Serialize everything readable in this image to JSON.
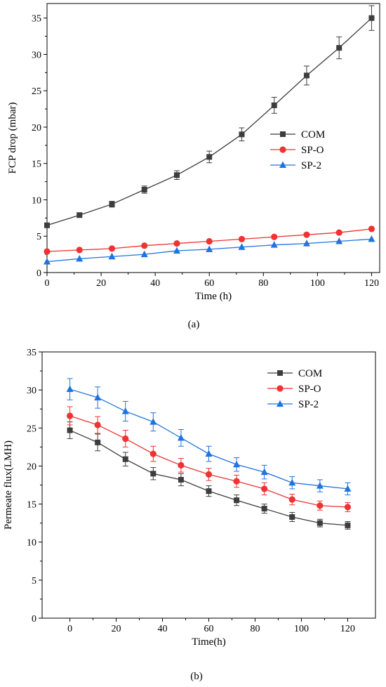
{
  "chart_data": [
    {
      "type": "line",
      "panel_label": "(a)",
      "xlabel": "Time (h)",
      "ylabel": "FCP drop (mbar)",
      "xlim": [
        0,
        123
      ],
      "ylim": [
        0,
        37
      ],
      "xticks": [
        0,
        20,
        40,
        60,
        80,
        100,
        120
      ],
      "yticks": [
        0,
        5,
        10,
        15,
        20,
        25,
        30,
        35
      ],
      "grid": false,
      "legend_position": "center-right",
      "x": [
        0,
        12,
        24,
        36,
        48,
        60,
        72,
        84,
        96,
        108,
        120
      ],
      "series": [
        {
          "name": "COM",
          "marker": "square",
          "color": "#3d3d3d",
          "values": [
            6.5,
            7.9,
            9.4,
            11.4,
            13.4,
            15.9,
            19.0,
            23.0,
            27.1,
            30.9,
            35.0
          ],
          "errors": [
            0.3,
            0.3,
            0.4,
            0.5,
            0.6,
            0.8,
            0.9,
            1.1,
            1.3,
            1.5,
            1.7
          ]
        },
        {
          "name": "SP-O",
          "marker": "circle",
          "color": "#f03232",
          "values": [
            2.9,
            3.1,
            3.3,
            3.7,
            4.0,
            4.3,
            4.6,
            4.9,
            5.2,
            5.5,
            6.0
          ],
          "errors": [
            0,
            0,
            0,
            0,
            0,
            0,
            0,
            0,
            0,
            0,
            0
          ]
        },
        {
          "name": "SP-2",
          "marker": "triangle",
          "color": "#1f74e0",
          "values": [
            1.5,
            1.9,
            2.2,
            2.5,
            3.0,
            3.2,
            3.5,
            3.8,
            4.0,
            4.3,
            4.6
          ],
          "errors": [
            0,
            0,
            0,
            0,
            0,
            0,
            0,
            0,
            0,
            0,
            0
          ]
        }
      ]
    },
    {
      "type": "line",
      "panel_label": "(b)",
      "xlabel": "Time(h)",
      "ylabel": "Permeate flux(LMH)",
      "xlim": [
        -12,
        132
      ],
      "ylim": [
        0,
        35
      ],
      "xticks": [
        0,
        20,
        40,
        60,
        80,
        100,
        120
      ],
      "yticks": [
        0,
        5,
        10,
        15,
        20,
        25,
        30,
        35
      ],
      "grid": false,
      "legend_position": "top-right",
      "x": [
        0,
        12,
        24,
        36,
        48,
        60,
        72,
        84,
        96,
        108,
        120
      ],
      "series": [
        {
          "name": "COM",
          "marker": "square",
          "color": "#3d3d3d",
          "values": [
            24.7,
            23.1,
            20.9,
            19.0,
            18.2,
            16.7,
            15.5,
            14.4,
            13.3,
            12.5,
            12.2
          ],
          "errors": [
            1.1,
            1.1,
            0.9,
            0.8,
            0.8,
            0.7,
            0.7,
            0.6,
            0.6,
            0.5,
            0.5
          ]
        },
        {
          "name": "SP-O",
          "marker": "circle",
          "color": "#f03232",
          "values": [
            26.6,
            25.4,
            23.6,
            21.6,
            20.1,
            18.9,
            18.0,
            17.0,
            15.6,
            14.8,
            14.6
          ],
          "errors": [
            1.2,
            1.1,
            1.1,
            1.0,
            0.9,
            0.8,
            0.8,
            0.8,
            0.7,
            0.6,
            0.6
          ]
        },
        {
          "name": "SP-2",
          "marker": "triangle",
          "color": "#1f74e0",
          "values": [
            30.1,
            29.0,
            27.2,
            25.8,
            23.7,
            21.6,
            20.2,
            19.2,
            17.8,
            17.4,
            17.0
          ],
          "errors": [
            1.4,
            1.4,
            1.3,
            1.2,
            1.1,
            1.0,
            0.9,
            0.9,
            0.8,
            0.8,
            0.8
          ]
        }
      ]
    }
  ]
}
